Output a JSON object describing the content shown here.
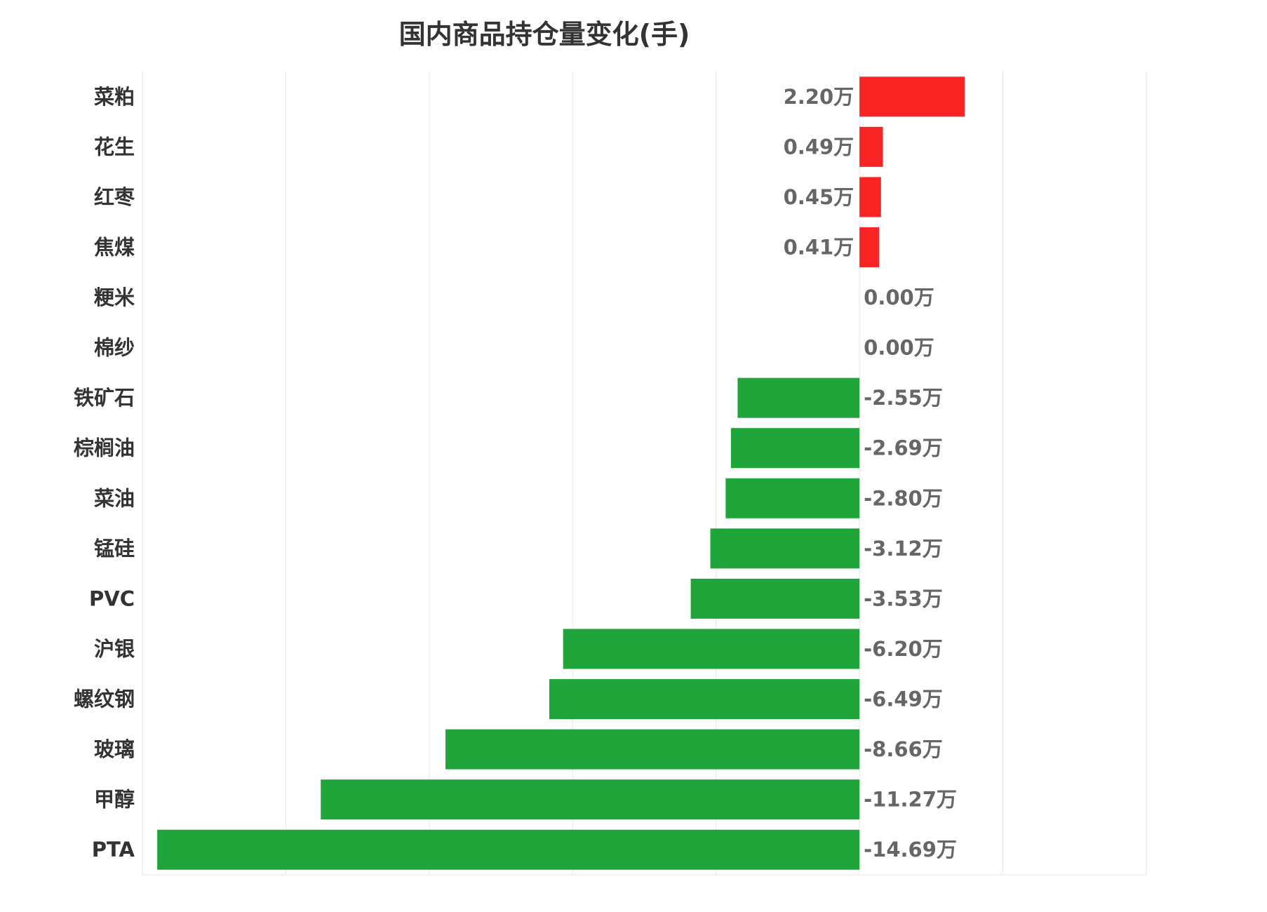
{
  "chart_data": {
    "type": "bar",
    "orientation": "horizontal",
    "title": "国内商品持仓量变化(手)",
    "unit_suffix": "万",
    "categories": [
      "菜粕",
      "花生",
      "红枣",
      "焦煤",
      "粳米",
      "棉纱",
      "铁矿石",
      "棕榈油",
      "菜油",
      "锰硅",
      "PVC",
      "沪银",
      "螺纹钢",
      "玻璃",
      "甲醇",
      "PTA"
    ],
    "values": [
      2.2,
      0.49,
      0.45,
      0.41,
      0.0,
      0.0,
      -2.55,
      -2.69,
      -2.8,
      -3.12,
      -3.53,
      -6.2,
      -6.49,
      -8.66,
      -11.27,
      -14.69
    ],
    "data_labels": [
      "2.20万",
      "0.49万",
      "0.45万",
      "0.41万",
      "0.00万",
      "0.00万",
      "-2.55万",
      "-2.69万",
      "-2.80万",
      "-3.12万",
      "-3.53万",
      "-6.20万",
      "-6.49万",
      "-8.66万",
      "-11.27万",
      "-14.69万"
    ],
    "xlim": [
      -15,
      6
    ],
    "grid_step": 3,
    "grid": true,
    "colors": {
      "positive": "#f92424",
      "negative": "#1fa53a",
      "grid": "#e6e6e6"
    }
  }
}
